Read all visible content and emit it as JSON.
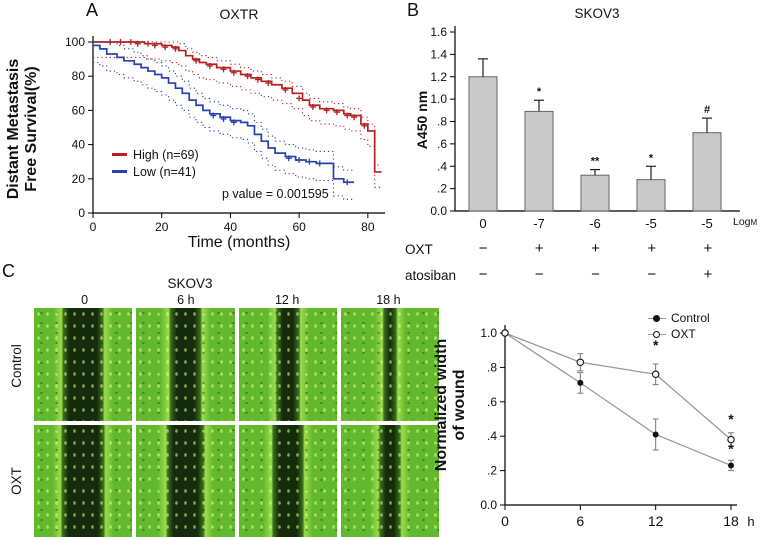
{
  "panel_labels": {
    "a": "A",
    "b": "B",
    "c": "C"
  },
  "chart_data": [
    {
      "type": "line",
      "subtype": "kaplan-meier",
      "title": "OXTR",
      "xlabel": "Time (months)",
      "ylabel_lines": [
        "Distant Metastasis",
        "Free Survival(%)"
      ],
      "xlim": [
        0,
        85
      ],
      "ylim": [
        0,
        100
      ],
      "xticks": [
        0,
        20,
        40,
        60,
        80
      ],
      "yticks": [
        0,
        20,
        40,
        60,
        80,
        100
      ],
      "pvalue": "p value = 0.001595",
      "series": [
        {
          "name": "High (n=69)",
          "color": "#b22222",
          "ci_offset": [
            4,
            9
          ],
          "points": [
            [
              0,
              100
            ],
            [
              15,
              99
            ],
            [
              20,
              98
            ],
            [
              23,
              97
            ],
            [
              25,
              95
            ],
            [
              27,
              92
            ],
            [
              29,
              90
            ],
            [
              31,
              88
            ],
            [
              33,
              87
            ],
            [
              36,
              85
            ],
            [
              40,
              83
            ],
            [
              43,
              81
            ],
            [
              46,
              79
            ],
            [
              49,
              77
            ],
            [
              52,
              75
            ],
            [
              55,
              73
            ],
            [
              58,
              70
            ],
            [
              61,
              66
            ],
            [
              63,
              63
            ],
            [
              66,
              61
            ],
            [
              70,
              60
            ],
            [
              73,
              58
            ],
            [
              75,
              57
            ],
            [
              78,
              52
            ],
            [
              80,
              48
            ],
            [
              82,
              24
            ],
            [
              84,
              24
            ]
          ],
          "censors": [
            [
              5,
              100
            ],
            [
              8,
              100
            ],
            [
              11,
              100
            ],
            [
              13,
              99
            ],
            [
              16,
              99
            ],
            [
              18,
              98
            ],
            [
              21,
              97
            ],
            [
              24,
              96
            ],
            [
              30,
              89
            ],
            [
              34,
              86
            ],
            [
              38,
              84
            ],
            [
              41,
              82
            ],
            [
              45,
              80
            ],
            [
              48,
              78
            ],
            [
              51,
              76
            ],
            [
              56,
              72
            ],
            [
              60,
              67
            ],
            [
              64,
              62
            ],
            [
              68,
              60
            ],
            [
              71,
              59
            ],
            [
              74,
              57
            ],
            [
              76,
              56
            ],
            [
              79,
              51
            ]
          ]
        },
        {
          "name": "Low (n=41)",
          "color": "#2840b0",
          "ci_offset": [
            7,
            10
          ],
          "points": [
            [
              0,
              98
            ],
            [
              2,
              96
            ],
            [
              4,
              93
            ],
            [
              7,
              91
            ],
            [
              9,
              89
            ],
            [
              12,
              87
            ],
            [
              14,
              85
            ],
            [
              16,
              83
            ],
            [
              18,
              81
            ],
            [
              20,
              79
            ],
            [
              22,
              76
            ],
            [
              24,
              73
            ],
            [
              26,
              70
            ],
            [
              28,
              66
            ],
            [
              30,
              63
            ],
            [
              32,
              60
            ],
            [
              34,
              58
            ],
            [
              37,
              56
            ],
            [
              40,
              54
            ],
            [
              43,
              53
            ],
            [
              45,
              51
            ],
            [
              47,
              46
            ],
            [
              49,
              42
            ],
            [
              51,
              38
            ],
            [
              53,
              35
            ],
            [
              56,
              33
            ],
            [
              59,
              31
            ],
            [
              62,
              30
            ],
            [
              65,
              29
            ],
            [
              68,
              29
            ],
            [
              70,
              20
            ],
            [
              73,
              18
            ],
            [
              76,
              18
            ]
          ],
          "censors": [
            [
              35,
              57
            ],
            [
              38,
              55
            ],
            [
              41,
              53
            ],
            [
              57,
              32
            ],
            [
              60,
              31
            ],
            [
              63,
              30
            ],
            [
              66,
              29
            ],
            [
              74,
              18
            ]
          ]
        }
      ]
    },
    {
      "type": "bar",
      "title": "SKOV3",
      "ylabel": "A450 nm",
      "categories": [
        "0",
        "-7",
        "-6",
        "-5",
        "-5"
      ],
      "values": [
        1.2,
        0.89,
        0.32,
        0.28,
        0.7
      ],
      "errors": [
        0.16,
        0.1,
        0.05,
        0.12,
        0.13
      ],
      "sig": [
        "",
        "*",
        "**",
        "*",
        "#"
      ],
      "ylim": [
        0,
        1.6
      ],
      "ytick_labels": [
        "0.0",
        ".2",
        ".4",
        ".6",
        ".8",
        "1.0",
        "1.2",
        "1.4",
        "1.6"
      ],
      "bar_color": "#c9c9c9",
      "xunit_main": "Log",
      "xunit_sub": "M",
      "treatment_rows": [
        {
          "name": "OXT",
          "symbols": [
            "−",
            "+",
            "+",
            "+",
            "+"
          ]
        },
        {
          "name": "atosiban",
          "symbols": [
            "−",
            "−",
            "−",
            "−",
            "+"
          ]
        }
      ]
    },
    {
      "type": "line",
      "ylabel_lines": [
        "Normalized width",
        "of wound"
      ],
      "x": [
        0,
        6,
        12,
        18
      ],
      "x_unit": "h",
      "yticks": [
        0,
        0.2,
        0.4,
        0.6,
        0.8,
        1.0
      ],
      "ytick_labels": [
        "0.0",
        ".2",
        ".4",
        ".6",
        ".8",
        "1.0"
      ],
      "line_color": "#999999",
      "series": [
        {
          "name": "Control",
          "marker": "filled",
          "values": [
            1.0,
            0.71,
            0.41,
            0.23
          ],
          "errors": [
            0,
            0.06,
            0.09,
            0.03
          ]
        },
        {
          "name": "OXT",
          "marker": "open",
          "values": [
            1.0,
            0.83,
            0.76,
            0.38
          ],
          "errors": [
            0,
            0.05,
            0.06,
            0.04
          ]
        }
      ],
      "annotations": [
        {
          "x": 12,
          "y": 0.9,
          "text": "*"
        },
        {
          "x": 18,
          "y": 0.47,
          "text": "*"
        },
        {
          "x": 18,
          "y": 0.3,
          "text": "*"
        }
      ]
    }
  ],
  "panel_c": {
    "title": "SKOV3",
    "timepoints": [
      "0",
      "6 h",
      "12 h",
      "18 h"
    ],
    "row_labels": [
      "Control",
      "OXT"
    ],
    "tile_colors": {
      "bright": "#63b92d",
      "mid": "#3a6f1c",
      "dark": "#142c0c",
      "highlight": "#9ade4d"
    },
    "wound_fractions": [
      [
        0.4,
        0.3,
        0.22,
        0.12
      ],
      [
        0.42,
        0.36,
        0.3,
        0.2
      ]
    ]
  }
}
